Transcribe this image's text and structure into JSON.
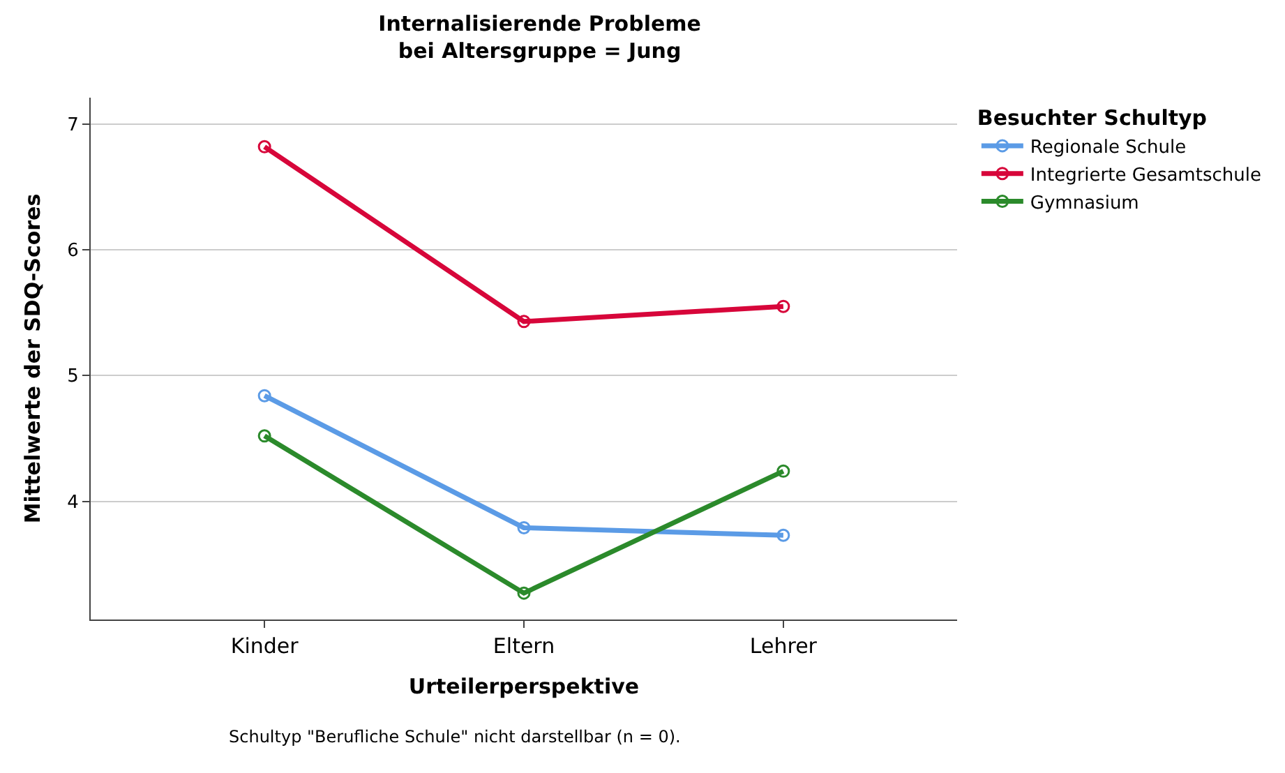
{
  "chart_data": {
    "type": "line",
    "title": "Internalisierende Probleme\nbei Altersgruppe = Jung",
    "xlabel": "Urteilerperspektive",
    "ylabel": "Mittelwerte der SDQ-Scores",
    "legend_title": "Besuchter Schultyp",
    "categories": [
      "Kinder",
      "Eltern",
      "Lehrer"
    ],
    "series": [
      {
        "name": "Regionale Schule",
        "color": "#5b9be6",
        "values": [
          4.84,
          3.79,
          3.73
        ]
      },
      {
        "name": "Integrierte Gesamtschule",
        "color": "#d7063a",
        "values": [
          6.82,
          5.43,
          5.55
        ]
      },
      {
        "name": "Gymnasium",
        "color": "#2b8a2b",
        "values": [
          4.52,
          3.27,
          4.24
        ]
      }
    ],
    "ylim": [
      3.06,
      7.21
    ],
    "yticks": [
      4,
      5,
      6,
      7
    ],
    "grid": "y",
    "legend": "top right",
    "marker": "circle",
    "line_style": "solid",
    "annotations": [
      "Schultyp \"Berufliche Schule\" nicht darstellbar (n = 0)."
    ]
  }
}
